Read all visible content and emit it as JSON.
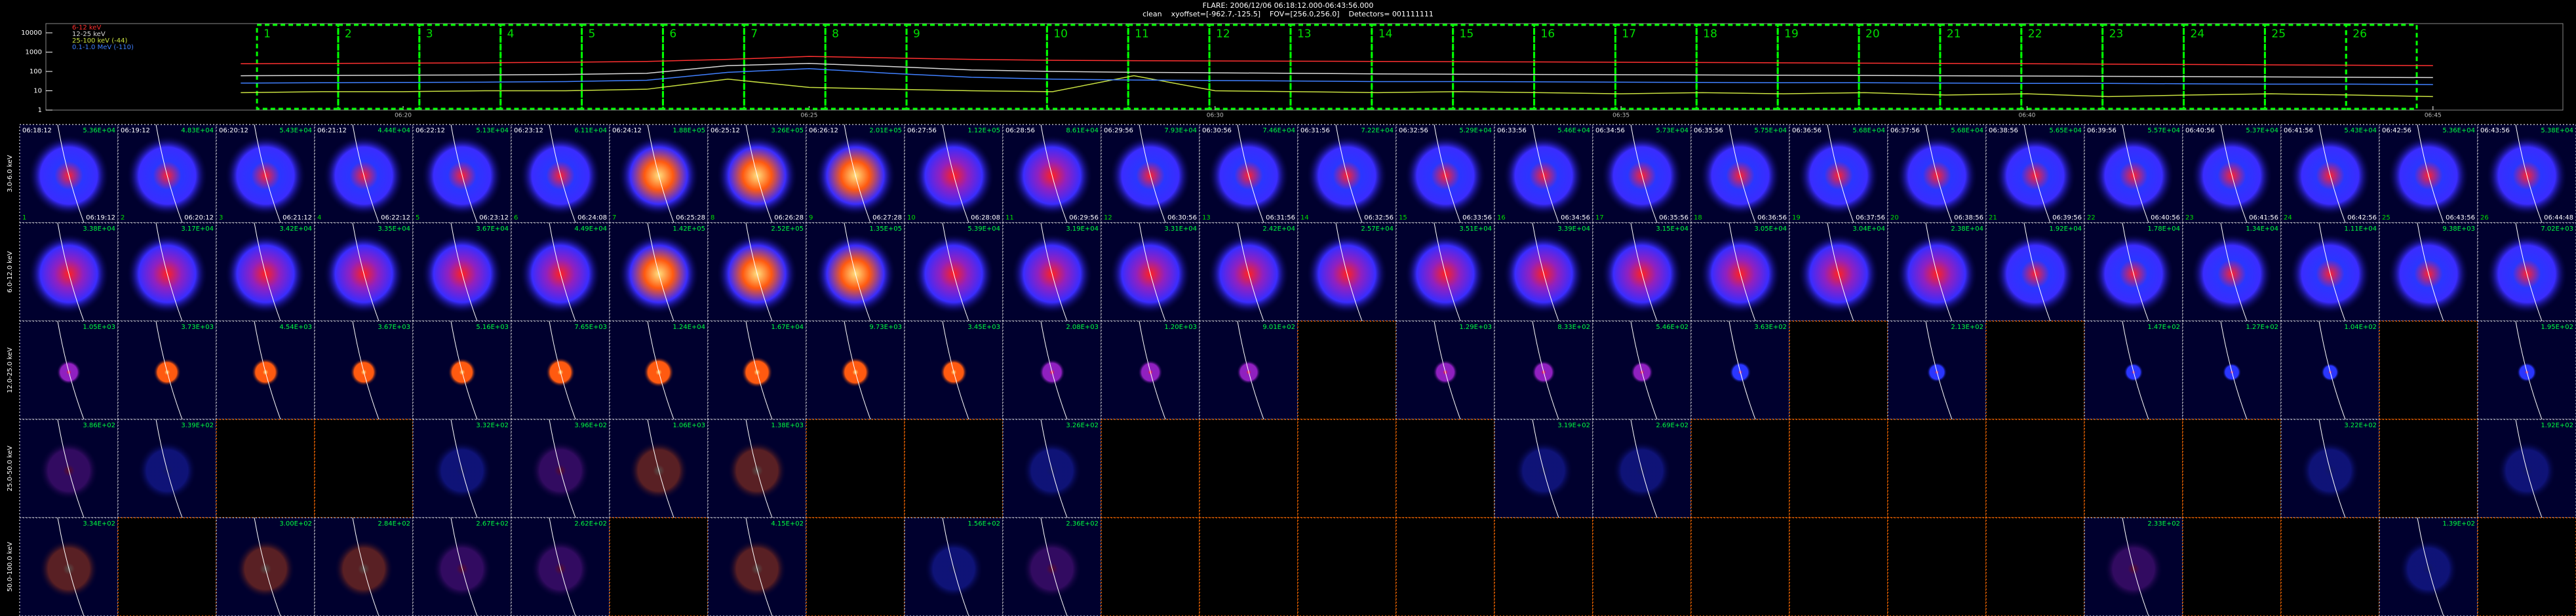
{
  "header": {
    "title": "FLARE: 2006/12/06 06:18:12.000-06:43:56.000",
    "subtitle": "clean    xyoffset=[-962.7,-125.5]    FOV=[256.0,256.0]    Detectors= 001111111"
  },
  "chart_data": {
    "type": "line",
    "log_y": true,
    "x": [
      18,
      19,
      20,
      21,
      22,
      23,
      24,
      25,
      26,
      27,
      28,
      29,
      30,
      31,
      32,
      33,
      34,
      35,
      36,
      37,
      38,
      39,
      40,
      41,
      42,
      43,
      44,
      45
    ],
    "xlim": [
      15.6,
      46.6
    ],
    "xticks": [
      {
        "value": 20,
        "label": "06:20"
      },
      {
        "value": 25,
        "label": "06:25"
      },
      {
        "value": 30,
        "label": "06:30"
      },
      {
        "value": 35,
        "label": "06:35"
      },
      {
        "value": 40,
        "label": "06:40"
      },
      {
        "value": 45,
        "label": "06:45"
      }
    ],
    "ylim": [
      1,
      30000
    ],
    "yticks": [
      1,
      10,
      100,
      1000,
      10000
    ],
    "series": [
      {
        "name": "6-12 keV",
        "color": "#ff3030",
        "values": [
          250,
          260,
          270,
          280,
          300,
          330,
          420,
          600,
          500,
          420,
          380,
          360,
          350,
          340,
          330,
          320,
          310,
          300,
          290,
          280,
          270,
          260,
          250,
          240,
          230,
          220,
          210,
          200
        ]
      },
      {
        "name": "12-25 keV",
        "color": "#d8d8d8",
        "values": [
          60,
          62,
          64,
          66,
          70,
          80,
          200,
          260,
          180,
          120,
          100,
          90,
          85,
          80,
          75,
          72,
          70,
          68,
          66,
          64,
          62,
          60,
          58,
          56,
          54,
          52,
          50,
          48
        ]
      },
      {
        "name": "25-100 keV (-44)",
        "color": "#c8e040",
        "values": [
          8,
          9,
          9,
          10,
          10,
          12,
          40,
          15,
          12,
          10,
          9,
          60,
          10,
          9,
          8,
          9,
          8,
          7,
          8,
          7,
          8,
          6,
          7,
          5,
          6,
          7,
          6,
          5
        ]
      },
      {
        "name": "0.1-1.0 MeV (-110)",
        "color": "#4080ff",
        "values": [
          25,
          26,
          27,
          28,
          30,
          35,
          90,
          140,
          80,
          50,
          40,
          36,
          34,
          32,
          30,
          30,
          29,
          28,
          27,
          26,
          26,
          25,
          24,
          24,
          23,
          22,
          22,
          21
        ]
      }
    ],
    "intervals": [
      {
        "label": "1",
        "start": 18.2,
        "end": 19.2
      },
      {
        "label": "2",
        "start": 19.2,
        "end": 20.2
      },
      {
        "label": "3",
        "start": 20.2,
        "end": 21.2
      },
      {
        "label": "4",
        "start": 21.2,
        "end": 22.2
      },
      {
        "label": "5",
        "start": 22.2,
        "end": 23.2
      },
      {
        "label": "6",
        "start": 23.2,
        "end": 24.2
      },
      {
        "label": "7",
        "start": 24.2,
        "end": 25.2
      },
      {
        "label": "8",
        "start": 25.2,
        "end": 26.2
      },
      {
        "label": "9",
        "start": 26.2,
        "end": 27.93
      },
      {
        "label": "10",
        "start": 27.93,
        "end": 28.93
      },
      {
        "label": "11",
        "start": 28.93,
        "end": 29.93
      },
      {
        "label": "12",
        "start": 29.93,
        "end": 30.93
      },
      {
        "label": "13",
        "start": 30.93,
        "end": 31.93
      },
      {
        "label": "14",
        "start": 31.93,
        "end": 32.93
      },
      {
        "label": "15",
        "start": 32.93,
        "end": 33.93
      },
      {
        "label": "16",
        "start": 33.93,
        "end": 34.93
      },
      {
        "label": "17",
        "start": 34.93,
        "end": 35.93
      },
      {
        "label": "18",
        "start": 35.93,
        "end": 36.93
      },
      {
        "label": "19",
        "start": 36.93,
        "end": 37.93
      },
      {
        "label": "20",
        "start": 37.93,
        "end": 38.93
      },
      {
        "label": "21",
        "start": 38.93,
        "end": 39.93
      },
      {
        "label": "22",
        "start": 39.93,
        "end": 40.93
      },
      {
        "label": "23",
        "start": 40.93,
        "end": 41.93
      },
      {
        "label": "24",
        "start": 41.93,
        "end": 42.93
      },
      {
        "label": "25",
        "start": 42.93,
        "end": 43.93
      },
      {
        "label": "26",
        "start": 43.93,
        "end": 44.8
      }
    ]
  },
  "image_grid": {
    "times": [
      {
        "start": "06:18:12",
        "end": "06:19:12"
      },
      {
        "start": "06:19:12",
        "end": "06:20:12"
      },
      {
        "start": "06:20:12",
        "end": "06:21:12"
      },
      {
        "start": "06:21:12",
        "end": "06:22:12"
      },
      {
        "start": "06:22:12",
        "end": "06:23:12"
      },
      {
        "start": "06:23:12",
        "end": "06:24:08"
      },
      {
        "start": "06:24:12",
        "end": "06:25:28"
      },
      {
        "start": "06:25:12",
        "end": "06:26:28"
      },
      {
        "start": "06:26:12",
        "end": "06:27:28"
      },
      {
        "start": "06:27:56",
        "end": "06:28:08"
      },
      {
        "start": "06:28:56",
        "end": "06:29:56"
      },
      {
        "start": "06:29:56",
        "end": "06:30:56"
      },
      {
        "start": "06:30:56",
        "end": "06:31:56"
      },
      {
        "start": "06:31:56",
        "end": "06:32:56"
      },
      {
        "start": "06:32:56",
        "end": "06:33:56"
      },
      {
        "start": "06:33:56",
        "end": "06:34:56"
      },
      {
        "start": "06:34:56",
        "end": "06:35:56"
      },
      {
        "start": "06:35:56",
        "end": "06:36:56"
      },
      {
        "start": "06:36:56",
        "end": "06:37:56"
      },
      {
        "start": "06:37:56",
        "end": "06:38:56"
      },
      {
        "start": "06:38:56",
        "end": "06:39:56"
      },
      {
        "start": "06:39:56",
        "end": "06:40:56"
      },
      {
        "start": "06:40:56",
        "end": "06:41:56"
      },
      {
        "start": "06:41:56",
        "end": "06:42:56"
      },
      {
        "start": "06:42:56",
        "end": "06:43:56"
      },
      {
        "start": "06:43:56",
        "end": "06:44:48"
      }
    ],
    "rows": [
      {
        "label": "3.0-6.0 keV",
        "cells": [
          {
            "value": 53600,
            "label": "5.36E+04"
          },
          {
            "value": 48300,
            "label": "4.83E+04"
          },
          {
            "value": 54300,
            "label": "5.43E+04"
          },
          {
            "value": 44400,
            "label": "4.44E+04"
          },
          {
            "value": 51300,
            "label": "5.13E+04"
          },
          {
            "value": 61100,
            "label": "6.11E+04"
          },
          {
            "value": 188000,
            "label": "1.88E+05"
          },
          {
            "value": 326000,
            "label": "3.26E+05"
          },
          {
            "value": 201000,
            "label": "2.01E+05"
          },
          {
            "value": 112000,
            "label": "1.12E+05"
          },
          {
            "value": 86100,
            "label": "8.61E+04"
          },
          {
            "value": 79300,
            "label": "7.93E+04"
          },
          {
            "value": 74600,
            "label": "7.46E+04"
          },
          {
            "value": 72200,
            "label": "7.22E+04"
          },
          {
            "value": 52900,
            "label": "5.29E+04"
          },
          {
            "value": 54600,
            "label": "5.46E+04"
          },
          {
            "value": 57300,
            "label": "5.73E+04"
          },
          {
            "value": 57500,
            "label": "5.75E+04"
          },
          {
            "value": 56800,
            "label": "5.68E+04"
          },
          {
            "value": 56800,
            "label": "5.68E+04"
          },
          {
            "value": 56500,
            "label": "5.65E+04"
          },
          {
            "value": 55700,
            "label": "5.57E+04"
          },
          {
            "value": 53700,
            "label": "5.37E+04"
          },
          {
            "value": 54300,
            "label": "5.43E+04"
          },
          {
            "value": 53600,
            "label": "5.36E+04"
          },
          {
            "value": 53800,
            "label": "5.38E+04"
          }
        ]
      },
      {
        "label": "6.0-12.0 keV",
        "cells": [
          {
            "value": 33800,
            "label": "3.38E+04"
          },
          {
            "value": 31700,
            "label": "3.17E+04"
          },
          {
            "value": 34200,
            "label": "3.42E+04"
          },
          {
            "value": 33500,
            "label": "3.35E+04"
          },
          {
            "value": 36700,
            "label": "3.67E+04"
          },
          {
            "value": 44900,
            "label": "4.49E+04"
          },
          {
            "value": 142000,
            "label": "1.42E+05"
          },
          {
            "value": 252000,
            "label": "2.52E+05"
          },
          {
            "value": 135000,
            "label": "1.35E+05"
          },
          {
            "value": 53900,
            "label": "5.39E+04"
          },
          {
            "value": 31900,
            "label": "3.19E+04"
          },
          {
            "value": 33100,
            "label": "3.31E+04"
          },
          {
            "value": 24200,
            "label": "2.42E+04"
          },
          {
            "value": 25700,
            "label": "2.57E+04"
          },
          {
            "value": 35100,
            "label": "3.51E+04"
          },
          {
            "value": 33900,
            "label": "3.39E+04"
          },
          {
            "value": 31500,
            "label": "3.15E+04"
          },
          {
            "value": 30500,
            "label": "3.05E+04"
          },
          {
            "value": 30400,
            "label": "3.04E+04"
          },
          {
            "value": 23800,
            "label": "2.38E+04"
          },
          {
            "value": 19200,
            "label": "1.92E+04"
          },
          {
            "value": 17800,
            "label": "1.78E+04"
          },
          {
            "value": 13400,
            "label": "1.34E+04"
          },
          {
            "value": 11100,
            "label": "1.11E+04"
          },
          {
            "value": 9380,
            "label": "9.38E+03"
          },
          {
            "value": 7020,
            "label": "7.02E+03"
          }
        ]
      },
      {
        "label": "12.0-25.0 keV",
        "cells": [
          {
            "value": 1050,
            "label": "1.05E+03"
          },
          {
            "value": 3730,
            "label": "3.73E+03"
          },
          {
            "value": 4540,
            "label": "4.54E+03"
          },
          {
            "value": 3670,
            "label": "3.67E+03"
          },
          {
            "value": 5160,
            "label": "5.16E+03"
          },
          {
            "value": 7650,
            "label": "7.65E+03"
          },
          {
            "value": 12400,
            "label": "1.24E+04"
          },
          {
            "value": 16700,
            "label": "1.67E+04"
          },
          {
            "value": 9730,
            "label": "9.73E+03"
          },
          {
            "value": 3450,
            "label": "3.45E+03"
          },
          {
            "value": 2080,
            "label": "2.08E+03"
          },
          {
            "value": 1200,
            "label": "1.20E+03"
          },
          {
            "value": 901,
            "label": "9.01E+02"
          },
          null,
          {
            "value": 1290,
            "label": "1.29E+03"
          },
          {
            "value": 833,
            "label": "8.33E+02"
          },
          {
            "value": 546,
            "label": "5.46E+02"
          },
          {
            "value": 363,
            "label": "3.63E+02"
          },
          null,
          {
            "value": 213,
            "label": "2.13E+02"
          },
          null,
          {
            "value": 147,
            "label": "1.47E+02"
          },
          {
            "value": 127,
            "label": "1.27E+02"
          },
          {
            "value": 104,
            "label": "1.04E+02"
          },
          null,
          {
            "value": 195,
            "label": "1.95E+02"
          }
        ]
      },
      {
        "label": "25.0-50.0 keV",
        "cells": [
          {
            "value": 386,
            "label": "3.86E+02"
          },
          {
            "value": 339,
            "label": "3.39E+02"
          },
          null,
          null,
          {
            "value": 332,
            "label": "3.32E+02"
          },
          {
            "value": 396,
            "label": "3.96E+02"
          },
          {
            "value": 1060,
            "label": "1.06E+03"
          },
          {
            "value": 1380,
            "label": "1.38E+03"
          },
          null,
          null,
          {
            "value": 326,
            "label": "3.26E+02"
          },
          null,
          null,
          null,
          null,
          {
            "value": 319,
            "label": "3.19E+02"
          },
          {
            "value": 269,
            "label": "2.69E+02"
          },
          null,
          null,
          null,
          null,
          null,
          null,
          {
            "value": 322,
            "label": "3.22E+02"
          },
          null,
          {
            "value": 192,
            "label": "1.92E+02"
          }
        ]
      },
      {
        "label": "50.0-100.0 keV",
        "cells": [
          {
            "value": 334,
            "label": "3.34E+02"
          },
          null,
          {
            "value": 300,
            "label": "3.00E+02"
          },
          {
            "value": 284,
            "label": "2.84E+02"
          },
          {
            "value": 267,
            "label": "2.67E+02"
          },
          {
            "value": 262,
            "label": "2.62E+02"
          },
          null,
          {
            "value": 415,
            "label": "4.15E+02"
          },
          null,
          {
            "value": 156,
            "label": "1.56E+02"
          },
          {
            "value": 236,
            "label": "2.36E+02"
          },
          null,
          null,
          null,
          null,
          null,
          null,
          null,
          null,
          null,
          null,
          {
            "value": 233,
            "label": "2.33E+02"
          },
          null,
          null,
          {
            "value": 139,
            "label": "1.39E+02"
          },
          null
        ]
      }
    ]
  }
}
